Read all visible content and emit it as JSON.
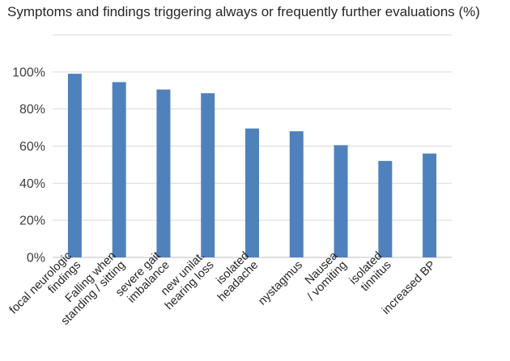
{
  "chart_data": {
    "type": "bar",
    "title": "Symptoms and findings triggering always or frequently further evaluations (%)",
    "xlabel": "",
    "ylabel": "",
    "categories": [
      [
        "focal neurologic",
        "findings"
      ],
      [
        "Falling when",
        "standing / sitting"
      ],
      [
        "severe gait",
        "imbalance"
      ],
      [
        "new unilat.",
        "hearing loss"
      ],
      [
        "isolated",
        "headache"
      ],
      [
        "nystagmus"
      ],
      [
        "Nausea",
        "/ vomiting"
      ],
      [
        "isolated",
        "tinnitus"
      ],
      [
        "increased BP"
      ]
    ],
    "values": [
      99,
      94.5,
      90.5,
      88.5,
      69.5,
      68,
      60.5,
      52,
      56
    ],
    "ylim": [
      0,
      120
    ],
    "yticks": [
      0,
      20,
      40,
      60,
      80,
      100
    ],
    "ytick_format": "percent",
    "grid": true,
    "legend": "none",
    "bar_color": "#4f81bd"
  }
}
